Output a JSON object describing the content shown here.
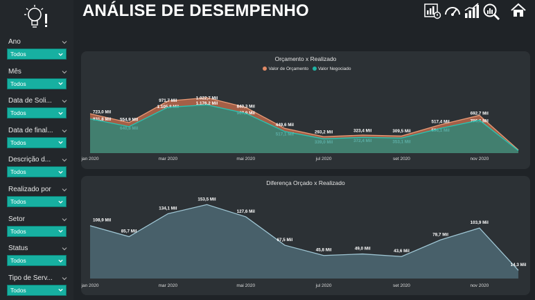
{
  "header": {
    "title": "ANÁLISE DE DESEMPENHO"
  },
  "icons": [
    "lightbulb-icon",
    "report-icon",
    "gauge-icon",
    "bar-chart-icon",
    "analytics-search-icon",
    "home-icon"
  ],
  "colors": {
    "teal": "#1fb3a4",
    "salmon": "#c98063",
    "accent_select": "#17b0a1",
    "area_blue": "#5a7680"
  },
  "filters": [
    {
      "label": "Ano",
      "value": "Todos"
    },
    {
      "label": "Mês",
      "value": "Todos"
    },
    {
      "label": "Data de Soli...",
      "value": "Todos"
    },
    {
      "label": "Data de final...",
      "value": "Todos"
    },
    {
      "label": "Descrição d...",
      "value": "Todos"
    },
    {
      "label": "Realizado por",
      "value": "Todos"
    },
    {
      "label": "Setor",
      "value": "Todos"
    },
    {
      "label": "Status",
      "value": "Todos"
    },
    {
      "label": "Tipo de Serv...",
      "value": "Todos"
    }
  ],
  "chart_data": [
    {
      "type": "area",
      "title": "Orçamento x Realizado",
      "x": [
        "jan 2020",
        "fev 2020",
        "mar 2020",
        "abr 2020",
        "mai 2020",
        "jun 2020",
        "jul 2020",
        "ago 2020",
        "set 2020",
        "out 2020",
        "nov 2020",
        "dez 2020"
      ],
      "tick_labels": [
        "jan 2020",
        "mar 2020",
        "mai 2020",
        "jul 2020",
        "set 2020",
        "nov 2020"
      ],
      "series": [
        {
          "name": "Valor de Orçamento",
          "color": "#c98063",
          "values": [
            831.8,
            640.6,
            1105.8,
            1176.2,
            967.9,
            517.1,
            339.0,
            372.4,
            353.1,
            596.1,
            796.6,
            55
          ],
          "labels": [
            "831,8 Mil",
            "640,6 Mil",
            "1.105,8 Mil",
            "1.176,2 Mil",
            "967,9 Mil",
            "517,1 Mil",
            "339,0 Mil",
            "372,4 Mil",
            "353,1 Mil",
            "596,1 Mil",
            "796,6 Mil",
            ""
          ]
        },
        {
          "name": "Valor Negociado",
          "color": "#1fb3a4",
          "values": [
            723.0,
            554.9,
            971.7,
            1022.7,
            840.3,
            449.6,
            293.2,
            323.4,
            309.5,
            517.4,
            692.7,
            40
          ],
          "labels": [
            "723,0 Mil",
            "554,9 Mil",
            "971,7 Mil",
            "1.022,7 Mil",
            "840,3 Mil",
            "449,6 Mil",
            "293,2 Mil",
            "323,4 Mil",
            "309,5 Mil",
            "517,4 Mil",
            "692,7 Mil",
            ""
          ]
        }
      ],
      "grid": false,
      "legend": "top-center"
    },
    {
      "type": "area",
      "title": "Diferença Orçado x Realizado",
      "x": [
        "jan 2020",
        "fev 2020",
        "mar 2020",
        "abr 2020",
        "mai 2020",
        "jun 2020",
        "jul 2020",
        "ago 2020",
        "set 2020",
        "out 2020",
        "nov 2020",
        "dez 2020"
      ],
      "tick_labels": [
        "jan 2020",
        "mar 2020",
        "mai 2020",
        "jul 2020",
        "set 2020",
        "nov 2020"
      ],
      "series": [
        {
          "color": "#5a7680",
          "values": [
            108.9,
            85.7,
            134.1,
            153.5,
            127.6,
            67.5,
            45.8,
            49.0,
            43.6,
            78.7,
            103.9,
            14.3
          ],
          "labels": [
            "108,9 Mil",
            "85,7 Mil",
            "134,1 Mil",
            "153,5 Mil",
            "127,6 Mil",
            "67,5 Mil",
            "45,8 Mil",
            "49,0 Mil",
            "43,6 Mil",
            "78,7 Mil",
            "103,9 Mil",
            "14,3 Mil"
          ]
        }
      ],
      "grid": false
    }
  ]
}
